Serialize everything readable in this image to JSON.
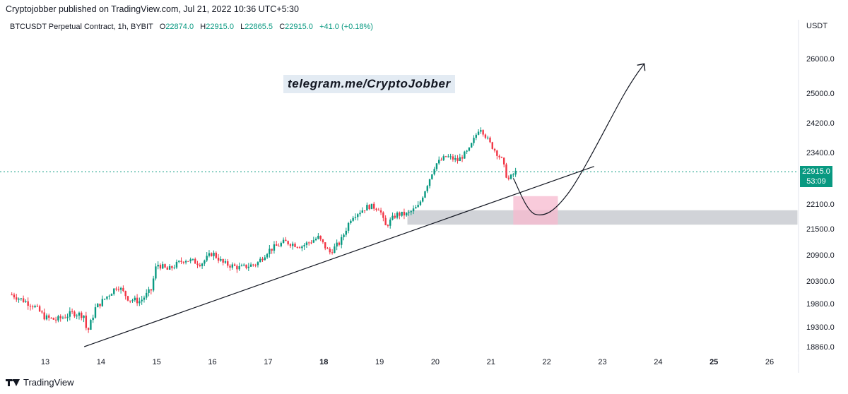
{
  "header": {
    "published_by": "Cryptojobber published on TradingView.com, Jul 21, 2022 10:36 UTC+5:30",
    "symbol": "BTCUSDT Perpetual Contract, 1h, BYBIT",
    "ohlc": {
      "o_label": "O",
      "o": "22874.0",
      "h_label": "H",
      "h": "22915.0",
      "l_label": "L",
      "l": "22865.5",
      "c_label": "C",
      "c": "22915.0",
      "change": "+41.0 (+0.18%)"
    },
    "currency": "USDT"
  },
  "watermark": "telegram.me/CryptoJobber",
  "last_price": {
    "price": "22915.0",
    "countdown": "53:09"
  },
  "brand": "TradingView",
  "colors": {
    "up": "#089981",
    "down": "#f23645",
    "zone_pink": "#f7b9cf",
    "zone_grey": "#b2b5be"
  },
  "chart_data": {
    "type": "candlestick",
    "x_ticks": [
      "13",
      "14",
      "15",
      "16",
      "17",
      "18",
      "19",
      "20",
      "21",
      "22",
      "23",
      "24",
      "25",
      "26"
    ],
    "y_ticks": [
      "26000.0",
      "25000.0",
      "24200.0",
      "23400.0",
      "22100.0",
      "21500.0",
      "20900.0",
      "20300.0",
      "19800.0",
      "19300.0",
      "18860.0"
    ],
    "y_tick_values": [
      26000,
      25000,
      24200,
      23400,
      22100,
      21500,
      20900,
      20300,
      19800,
      19300,
      18860
    ],
    "x_range_days": [
      12.35,
      26.85
    ],
    "close_path": [
      [
        12.4,
        20000
      ],
      [
        12.8,
        19750
      ],
      [
        13.0,
        19500
      ],
      [
        13.2,
        19450
      ],
      [
        13.5,
        19600
      ],
      [
        13.7,
        19550
      ],
      [
        13.75,
        19150
      ],
      [
        13.9,
        19700
      ],
      [
        14.1,
        19950
      ],
      [
        14.3,
        20200
      ],
      [
        14.5,
        19900
      ],
      [
        14.7,
        19850
      ],
      [
        14.9,
        20100
      ],
      [
        15.0,
        20700
      ],
      [
        15.2,
        20550
      ],
      [
        15.5,
        20800
      ],
      [
        15.8,
        20700
      ],
      [
        16.0,
        20950
      ],
      [
        16.2,
        20700
      ],
      [
        16.5,
        20600
      ],
      [
        16.8,
        20700
      ],
      [
        17.0,
        21000
      ],
      [
        17.3,
        21200
      ],
      [
        17.6,
        21100
      ],
      [
        17.9,
        21300
      ],
      [
        18.1,
        20950
      ],
      [
        18.3,
        21200
      ],
      [
        18.5,
        21800
      ],
      [
        18.8,
        22050
      ],
      [
        19.0,
        22000
      ],
      [
        19.1,
        21550
      ],
      [
        19.3,
        21850
      ],
      [
        19.5,
        21850
      ],
      [
        19.7,
        22050
      ],
      [
        19.8,
        22400
      ],
      [
        20.0,
        23100
      ],
      [
        20.2,
        23300
      ],
      [
        20.4,
        23200
      ],
      [
        20.6,
        23450
      ],
      [
        20.8,
        24100
      ],
      [
        21.0,
        23600
      ],
      [
        21.2,
        23200
      ],
      [
        21.3,
        22700
      ],
      [
        21.45,
        22915
      ]
    ],
    "trendline": [
      [
        13.7,
        18860
      ],
      [
        22.85,
        23050
      ]
    ],
    "last_price_line": 22915,
    "zones": [
      {
        "kind": "grey",
        "x": [
          19.5,
          26.5
        ],
        "y": [
          21600,
          21950
        ]
      },
      {
        "kind": "pink",
        "x": [
          21.4,
          22.2
        ],
        "y": [
          21600,
          22300
        ]
      }
    ],
    "projection_curve": [
      [
        21.4,
        22750
      ],
      [
        21.8,
        21850
      ],
      [
        22.4,
        22400
      ],
      [
        23.4,
        25000
      ],
      [
        23.75,
        25850
      ]
    ]
  }
}
